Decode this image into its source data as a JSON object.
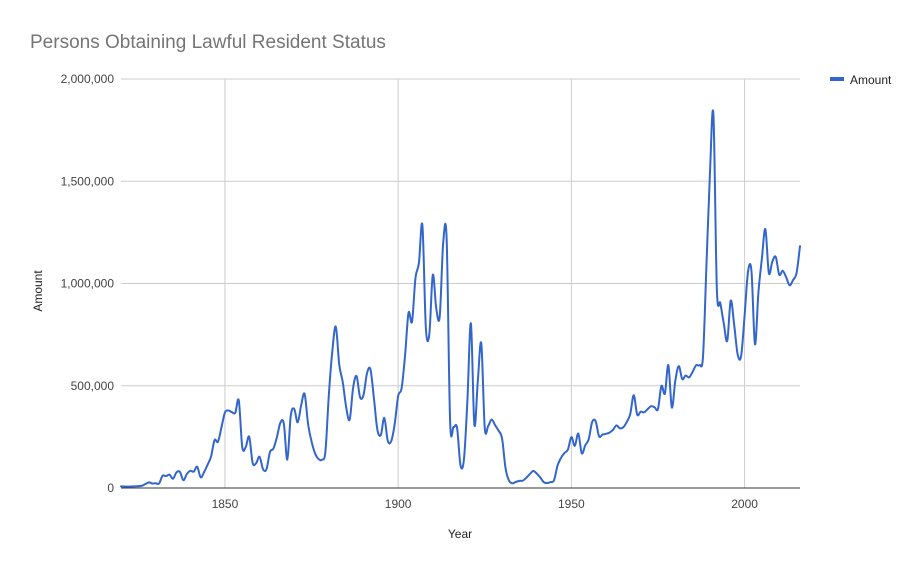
{
  "chart_data": {
    "type": "line",
    "title": "Persons Obtaining Lawful Resident Status",
    "xlabel": "Year",
    "ylabel": "Amount",
    "xlim": [
      1820,
      2016
    ],
    "ylim": [
      0,
      2000000
    ],
    "x_ticks": [
      1850,
      1900,
      1950,
      2000
    ],
    "y_ticks": [
      0,
      500000,
      1000000,
      1500000,
      2000000
    ],
    "y_tick_labels": [
      "0",
      "500,000",
      "1,000,000",
      "1,500,000",
      "2,000,000"
    ],
    "grid": true,
    "legend_position": "top-right",
    "series": [
      {
        "name": "Amount",
        "color": "#3366cc",
        "points": [
          [
            1820,
            8000
          ],
          [
            1822,
            7000
          ],
          [
            1824,
            8000
          ],
          [
            1826,
            11000
          ],
          [
            1828,
            27000
          ],
          [
            1829,
            22000
          ],
          [
            1830,
            23000
          ],
          [
            1831,
            22000
          ],
          [
            1832,
            60000
          ],
          [
            1833,
            58000
          ],
          [
            1834,
            65000
          ],
          [
            1835,
            45000
          ],
          [
            1836,
            76000
          ],
          [
            1837,
            79000
          ],
          [
            1838,
            38000
          ],
          [
            1839,
            68000
          ],
          [
            1840,
            84000
          ],
          [
            1841,
            80000
          ],
          [
            1842,
            104000
          ],
          [
            1843,
            52000
          ],
          [
            1844,
            78000
          ],
          [
            1845,
            114000
          ],
          [
            1846,
            154000
          ],
          [
            1847,
            234000
          ],
          [
            1848,
            226000
          ],
          [
            1849,
            297000
          ],
          [
            1850,
            369000
          ],
          [
            1851,
            379000
          ],
          [
            1852,
            371000
          ],
          [
            1853,
            368000
          ],
          [
            1854,
            428000
          ],
          [
            1855,
            200000
          ],
          [
            1856,
            200000
          ],
          [
            1857,
            251000
          ],
          [
            1858,
            123000
          ],
          [
            1859,
            121000
          ],
          [
            1860,
            153000
          ],
          [
            1861,
            92000
          ],
          [
            1862,
            92000
          ],
          [
            1863,
            176000
          ],
          [
            1864,
            193000
          ],
          [
            1865,
            248000
          ],
          [
            1866,
            319000
          ],
          [
            1867,
            315000
          ],
          [
            1868,
            139000
          ],
          [
            1869,
            353000
          ],
          [
            1870,
            387000
          ],
          [
            1871,
            321000
          ],
          [
            1872,
            404000
          ],
          [
            1873,
            460000
          ],
          [
            1874,
            313000
          ],
          [
            1875,
            228000
          ],
          [
            1876,
            170000
          ],
          [
            1877,
            142000
          ],
          [
            1878,
            138000
          ],
          [
            1879,
            178000
          ],
          [
            1880,
            457000
          ],
          [
            1881,
            669000
          ],
          [
            1882,
            789000
          ],
          [
            1883,
            603000
          ],
          [
            1884,
            519000
          ],
          [
            1885,
            395000
          ],
          [
            1886,
            334000
          ],
          [
            1887,
            490000
          ],
          [
            1888,
            547000
          ],
          [
            1889,
            444000
          ],
          [
            1890,
            455000
          ],
          [
            1891,
            560000
          ],
          [
            1892,
            580000
          ],
          [
            1893,
            440000
          ],
          [
            1894,
            286000
          ],
          [
            1895,
            259000
          ],
          [
            1896,
            343000
          ],
          [
            1897,
            231000
          ],
          [
            1898,
            229000
          ],
          [
            1899,
            312000
          ],
          [
            1900,
            449000
          ],
          [
            1901,
            488000
          ],
          [
            1902,
            649000
          ],
          [
            1903,
            857000
          ],
          [
            1904,
            813000
          ],
          [
            1905,
            1026000
          ],
          [
            1906,
            1101000
          ],
          [
            1907,
            1285000
          ],
          [
            1908,
            783000
          ],
          [
            1909,
            752000
          ],
          [
            1910,
            1042000
          ],
          [
            1911,
            879000
          ],
          [
            1912,
            838000
          ],
          [
            1913,
            1198000
          ],
          [
            1914,
            1218000
          ],
          [
            1915,
            327000
          ],
          [
            1916,
            298000
          ],
          [
            1917,
            295000
          ],
          [
            1918,
            111000
          ],
          [
            1919,
            141000
          ],
          [
            1920,
            430000
          ],
          [
            1921,
            805000
          ],
          [
            1922,
            310000
          ],
          [
            1923,
            523000
          ],
          [
            1924,
            707000
          ],
          [
            1925,
            294000
          ],
          [
            1926,
            304000
          ],
          [
            1927,
            335000
          ],
          [
            1928,
            307000
          ],
          [
            1929,
            280000
          ],
          [
            1930,
            242000
          ],
          [
            1931,
            97000
          ],
          [
            1932,
            36000
          ],
          [
            1933,
            23000
          ],
          [
            1934,
            30000
          ],
          [
            1935,
            35000
          ],
          [
            1936,
            36000
          ],
          [
            1937,
            50000
          ],
          [
            1938,
            68000
          ],
          [
            1939,
            83000
          ],
          [
            1940,
            71000
          ],
          [
            1941,
            52000
          ],
          [
            1942,
            29000
          ],
          [
            1943,
            24000
          ],
          [
            1944,
            29000
          ],
          [
            1945,
            38000
          ],
          [
            1946,
            109000
          ],
          [
            1947,
            147000
          ],
          [
            1948,
            171000
          ],
          [
            1949,
            188000
          ],
          [
            1950,
            249000
          ],
          [
            1951,
            206000
          ],
          [
            1952,
            266000
          ],
          [
            1953,
            170000
          ],
          [
            1954,
            208000
          ],
          [
            1955,
            238000
          ],
          [
            1956,
            322000
          ],
          [
            1957,
            327000
          ],
          [
            1958,
            253000
          ],
          [
            1959,
            261000
          ],
          [
            1960,
            265000
          ],
          [
            1961,
            271000
          ],
          [
            1962,
            284000
          ],
          [
            1963,
            306000
          ],
          [
            1964,
            292000
          ],
          [
            1965,
            297000
          ],
          [
            1966,
            323000
          ],
          [
            1967,
            362000
          ],
          [
            1968,
            454000
          ],
          [
            1969,
            359000
          ],
          [
            1970,
            373000
          ],
          [
            1971,
            370000
          ],
          [
            1972,
            385000
          ],
          [
            1973,
            400000
          ],
          [
            1974,
            395000
          ],
          [
            1975,
            386000
          ],
          [
            1976,
            499000
          ],
          [
            1977,
            462000
          ],
          [
            1978,
            601000
          ],
          [
            1979,
            394000
          ],
          [
            1980,
            524000
          ],
          [
            1981,
            596000
          ],
          [
            1982,
            533000
          ],
          [
            1983,
            550000
          ],
          [
            1984,
            541000
          ],
          [
            1985,
            568000
          ],
          [
            1986,
            600000
          ],
          [
            1987,
            601000
          ],
          [
            1988,
            643000
          ],
          [
            1989,
            1091000
          ],
          [
            1990,
            1536000
          ],
          [
            1991,
            1827000
          ],
          [
            1992,
            973000
          ],
          [
            1993,
            904000
          ],
          [
            1994,
            804000
          ],
          [
            1995,
            720000
          ],
          [
            1996,
            916000
          ],
          [
            1997,
            798000
          ],
          [
            1998,
            654000
          ],
          [
            1999,
            645000
          ],
          [
            2000,
            841000
          ],
          [
            2001,
            1059000
          ],
          [
            2002,
            1059000
          ],
          [
            2003,
            703000
          ],
          [
            2004,
            957000
          ],
          [
            2005,
            1122000
          ],
          [
            2006,
            1266000
          ],
          [
            2007,
            1052000
          ],
          [
            2008,
            1107000
          ],
          [
            2009,
            1130000
          ],
          [
            2010,
            1043000
          ],
          [
            2011,
            1062000
          ],
          [
            2012,
            1031000
          ],
          [
            2013,
            991000
          ],
          [
            2014,
            1017000
          ],
          [
            2015,
            1051000
          ],
          [
            2016,
            1183000
          ]
        ]
      }
    ]
  }
}
